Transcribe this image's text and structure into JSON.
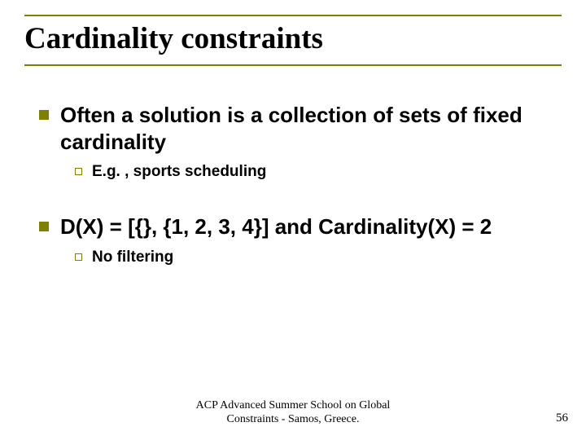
{
  "title": "Cardinality constraints",
  "bullets": [
    {
      "level": 1,
      "text": "Often a solution is a collection of sets of fixed cardinality"
    },
    {
      "level": 2,
      "text": "E.g. , sports scheduling"
    },
    {
      "level": 1,
      "text": "D(X) = [{}, {1, 2, 3, 4}]  and Cardinality(X) = 2"
    },
    {
      "level": 2,
      "text": "No filtering"
    }
  ],
  "footer": {
    "line1": "ACP Advanced Summer School on Global",
    "line2": "Constraints -  Samos, Greece."
  },
  "page_number": "56",
  "colors": {
    "accent": "#808000",
    "text": "#000000",
    "background": "#ffffff"
  }
}
